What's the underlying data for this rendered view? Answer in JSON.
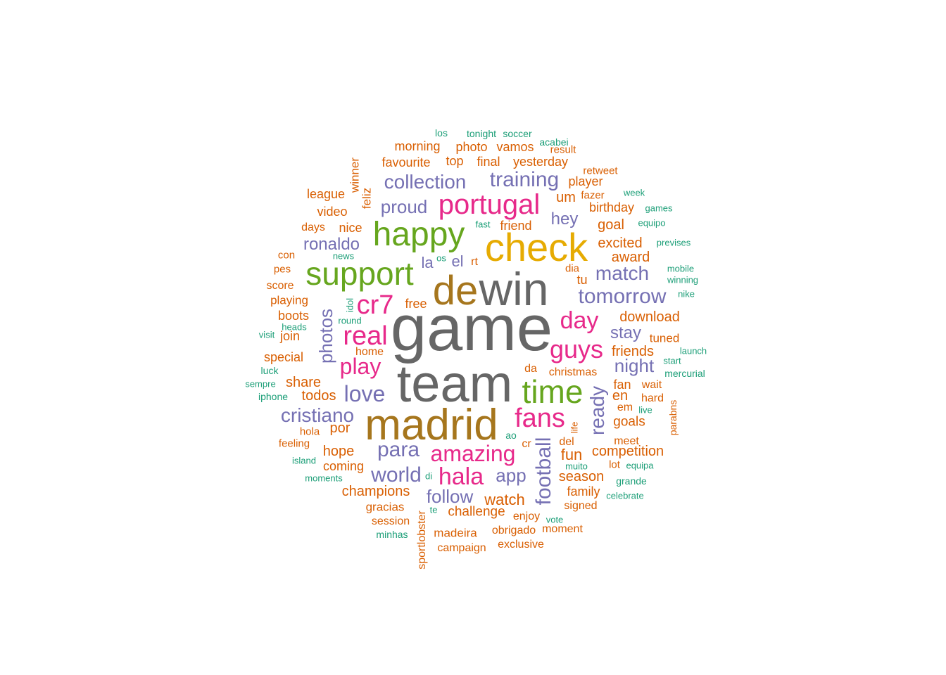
{
  "palette": {
    "gray": "#666666",
    "gold": "#A6761D",
    "yellow": "#E6AB02",
    "green": "#66A61E",
    "pink": "#E7298A",
    "purple": "#7570B3",
    "orange": "#D95F02",
    "teal": "#1B9E77"
  },
  "words": [
    {
      "text": "game",
      "color": "gray"
    },
    {
      "text": "team",
      "color": "gray"
    },
    {
      "text": "win",
      "color": "gray"
    },
    {
      "text": "de",
      "color": "gold"
    },
    {
      "text": "madrid",
      "color": "gold"
    },
    {
      "text": "check",
      "color": "yellow"
    },
    {
      "text": "happy",
      "color": "green"
    },
    {
      "text": "support",
      "color": "green"
    },
    {
      "text": "time",
      "color": "green"
    },
    {
      "text": "portugal",
      "color": "pink"
    },
    {
      "text": "cr7",
      "color": "pink"
    },
    {
      "text": "real",
      "color": "pink"
    },
    {
      "text": "play",
      "color": "pink"
    },
    {
      "text": "guys",
      "color": "pink"
    },
    {
      "text": "day",
      "color": "pink"
    },
    {
      "text": "fans",
      "color": "pink"
    },
    {
      "text": "amazing",
      "color": "pink"
    },
    {
      "text": "hala",
      "color": "pink"
    },
    {
      "text": "training",
      "color": "purple"
    },
    {
      "text": "collection",
      "color": "purple"
    },
    {
      "text": "proud",
      "color": "purple"
    },
    {
      "text": "hey",
      "color": "purple"
    },
    {
      "text": "ronaldo",
      "color": "purple"
    },
    {
      "text": "el",
      "color": "purple"
    },
    {
      "text": "la",
      "color": "purple"
    },
    {
      "text": "match",
      "color": "purple"
    },
    {
      "text": "tomorrow",
      "color": "purple"
    },
    {
      "text": "photos",
      "color": "purple"
    },
    {
      "text": "love",
      "color": "purple"
    },
    {
      "text": "stay",
      "color": "purple"
    },
    {
      "text": "night",
      "color": "purple"
    },
    {
      "text": "ready",
      "color": "purple"
    },
    {
      "text": "cristiano",
      "color": "purple"
    },
    {
      "text": "para",
      "color": "purple"
    },
    {
      "text": "world",
      "color": "purple"
    },
    {
      "text": "app",
      "color": "purple"
    },
    {
      "text": "follow",
      "color": "purple"
    },
    {
      "text": "football",
      "color": "purple"
    },
    {
      "text": "morning",
      "color": "orange"
    },
    {
      "text": "photo",
      "color": "orange"
    },
    {
      "text": "vamos",
      "color": "orange"
    },
    {
      "text": "result",
      "color": "orange"
    },
    {
      "text": "favourite",
      "color": "orange"
    },
    {
      "text": "top",
      "color": "orange"
    },
    {
      "text": "final",
      "color": "orange"
    },
    {
      "text": "yesterday",
      "color": "orange"
    },
    {
      "text": "retweet",
      "color": "orange"
    },
    {
      "text": "player",
      "color": "orange"
    },
    {
      "text": "winner",
      "color": "orange"
    },
    {
      "text": "league",
      "color": "orange"
    },
    {
      "text": "feliz",
      "color": "orange"
    },
    {
      "text": "um",
      "color": "orange"
    },
    {
      "text": "fazer",
      "color": "orange"
    },
    {
      "text": "birthday",
      "color": "orange"
    },
    {
      "text": "video",
      "color": "orange"
    },
    {
      "text": "days",
      "color": "orange"
    },
    {
      "text": "nice",
      "color": "orange"
    },
    {
      "text": "friend",
      "color": "orange"
    },
    {
      "text": "goal",
      "color": "orange"
    },
    {
      "text": "excited",
      "color": "orange"
    },
    {
      "text": "con",
      "color": "orange"
    },
    {
      "text": "rt",
      "color": "orange"
    },
    {
      "text": "award",
      "color": "orange"
    },
    {
      "text": "pes",
      "color": "orange"
    },
    {
      "text": "dia",
      "color": "orange"
    },
    {
      "text": "tu",
      "color": "orange"
    },
    {
      "text": "score",
      "color": "orange"
    },
    {
      "text": "playing",
      "color": "orange"
    },
    {
      "text": "free",
      "color": "orange"
    },
    {
      "text": "download",
      "color": "orange"
    },
    {
      "text": "boots",
      "color": "orange"
    },
    {
      "text": "join",
      "color": "orange"
    },
    {
      "text": "tuned",
      "color": "orange"
    },
    {
      "text": "friends",
      "color": "orange"
    },
    {
      "text": "home",
      "color": "orange"
    },
    {
      "text": "special",
      "color": "orange"
    },
    {
      "text": "da",
      "color": "orange"
    },
    {
      "text": "christmas",
      "color": "orange"
    },
    {
      "text": "share",
      "color": "orange"
    },
    {
      "text": "fan",
      "color": "orange"
    },
    {
      "text": "wait",
      "color": "orange"
    },
    {
      "text": "todos",
      "color": "orange"
    },
    {
      "text": "en",
      "color": "orange"
    },
    {
      "text": "hard",
      "color": "orange"
    },
    {
      "text": "em",
      "color": "orange"
    },
    {
      "text": "por",
      "color": "orange"
    },
    {
      "text": "goals",
      "color": "orange"
    },
    {
      "text": "hola",
      "color": "orange"
    },
    {
      "text": "parabns",
      "color": "orange"
    },
    {
      "text": "life",
      "color": "orange"
    },
    {
      "text": "feeling",
      "color": "orange"
    },
    {
      "text": "cr",
      "color": "orange"
    },
    {
      "text": "del",
      "color": "orange"
    },
    {
      "text": "meet",
      "color": "orange"
    },
    {
      "text": "hope",
      "color": "orange"
    },
    {
      "text": "competition",
      "color": "orange"
    },
    {
      "text": "fun",
      "color": "orange"
    },
    {
      "text": "coming",
      "color": "orange"
    },
    {
      "text": "lot",
      "color": "orange"
    },
    {
      "text": "season",
      "color": "orange"
    },
    {
      "text": "champions",
      "color": "orange"
    },
    {
      "text": "family",
      "color": "orange"
    },
    {
      "text": "watch",
      "color": "orange"
    },
    {
      "text": "gracias",
      "color": "orange"
    },
    {
      "text": "challenge",
      "color": "orange"
    },
    {
      "text": "signed",
      "color": "orange"
    },
    {
      "text": "sportlobster",
      "color": "orange"
    },
    {
      "text": "enjoy",
      "color": "orange"
    },
    {
      "text": "session",
      "color": "orange"
    },
    {
      "text": "madeira",
      "color": "orange"
    },
    {
      "text": "obrigado",
      "color": "orange"
    },
    {
      "text": "moment",
      "color": "orange"
    },
    {
      "text": "exclusive",
      "color": "orange"
    },
    {
      "text": "campaign",
      "color": "orange"
    },
    {
      "text": "los",
      "color": "teal"
    },
    {
      "text": "tonight",
      "color": "teal"
    },
    {
      "text": "soccer",
      "color": "teal"
    },
    {
      "text": "acabei",
      "color": "teal"
    },
    {
      "text": "week",
      "color": "teal"
    },
    {
      "text": "games",
      "color": "teal"
    },
    {
      "text": "fast",
      "color": "teal"
    },
    {
      "text": "equipo",
      "color": "teal"
    },
    {
      "text": "previses",
      "color": "teal"
    },
    {
      "text": "news",
      "color": "teal"
    },
    {
      "text": "os",
      "color": "teal"
    },
    {
      "text": "mobile",
      "color": "teal"
    },
    {
      "text": "winning",
      "color": "teal"
    },
    {
      "text": "nike",
      "color": "teal"
    },
    {
      "text": "idol",
      "color": "teal"
    },
    {
      "text": "round",
      "color": "teal"
    },
    {
      "text": "heads",
      "color": "teal"
    },
    {
      "text": "visit",
      "color": "teal"
    },
    {
      "text": "launch",
      "color": "teal"
    },
    {
      "text": "start",
      "color": "teal"
    },
    {
      "text": "luck",
      "color": "teal"
    },
    {
      "text": "mercurial",
      "color": "teal"
    },
    {
      "text": "sempre",
      "color": "teal"
    },
    {
      "text": "iphone",
      "color": "teal"
    },
    {
      "text": "live",
      "color": "teal"
    },
    {
      "text": "ao",
      "color": "teal"
    },
    {
      "text": "island",
      "color": "teal"
    },
    {
      "text": "muito",
      "color": "teal"
    },
    {
      "text": "equipa",
      "color": "teal"
    },
    {
      "text": "grande",
      "color": "teal"
    },
    {
      "text": "di",
      "color": "teal"
    },
    {
      "text": "moments",
      "color": "teal"
    },
    {
      "text": "celebrate",
      "color": "teal"
    },
    {
      "text": "te",
      "color": "teal"
    },
    {
      "text": "vote",
      "color": "teal"
    },
    {
      "text": "minhas",
      "color": "teal"
    }
  ]
}
